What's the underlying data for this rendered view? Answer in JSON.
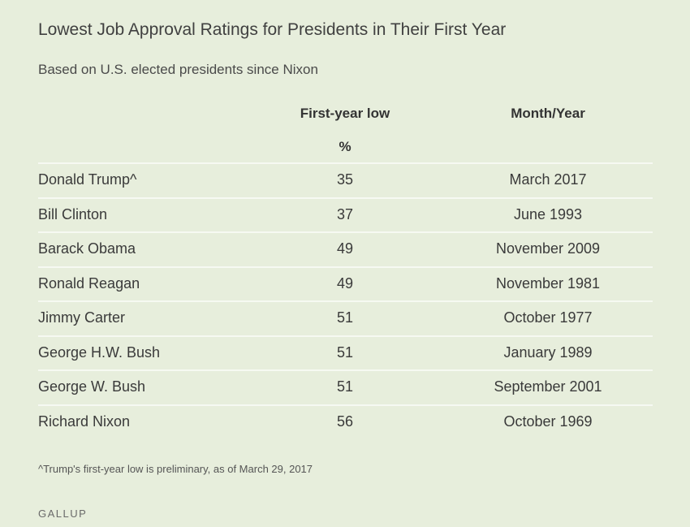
{
  "chart_data": {
    "type": "table",
    "title": "Lowest Job Approval Ratings for Presidents in Their First Year",
    "subtitle": "Based on U.S. elected presidents since Nixon",
    "columns": [
      "First-year low",
      "Month/Year"
    ],
    "unit_row": "%",
    "rows": [
      {
        "name": "Donald Trump^",
        "low": "35",
        "month_year": "March 2017"
      },
      {
        "name": "Bill Clinton",
        "low": "37",
        "month_year": "June 1993"
      },
      {
        "name": "Barack Obama",
        "low": "49",
        "month_year": "November 2009"
      },
      {
        "name": "Ronald Reagan",
        "low": "49",
        "month_year": "November 1981"
      },
      {
        "name": "Jimmy Carter",
        "low": "51",
        "month_year": "October 1977"
      },
      {
        "name": "George H.W. Bush",
        "low": "51",
        "month_year": "January 1989"
      },
      {
        "name": "George W. Bush",
        "low": "51",
        "month_year": "September 2001"
      },
      {
        "name": "Richard Nixon",
        "low": "56",
        "month_year": "October 1969"
      }
    ],
    "footnote": "^Trump's first-year low is preliminary, as of March 29, 2017",
    "source": "GALLUP"
  }
}
